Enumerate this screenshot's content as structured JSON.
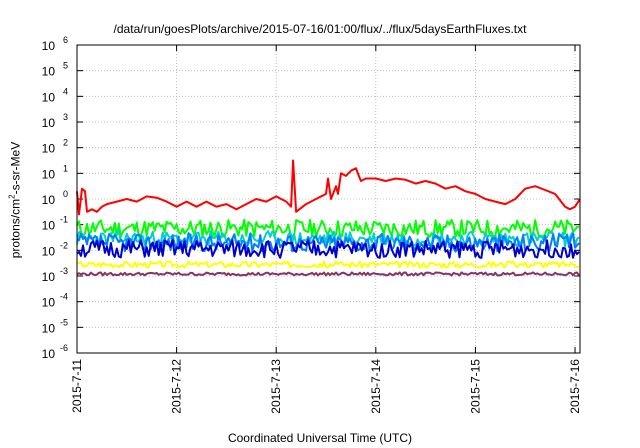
{
  "chart_data": {
    "type": "line",
    "title": "/data/run/goesPlots/archive/2015-07-16/01:00/flux/../flux/5daysEarthFluxes.txt",
    "xlabel": "Coordinated Universal Time (UTC)",
    "ylabel_parts": [
      "protons/cm",
      "2",
      "-s-sr-MeV"
    ],
    "yscale": "log",
    "ylim_exp": [
      -6,
      6
    ],
    "xlim_days": [
      0,
      5.05
    ],
    "x_ticks": [
      "2015-7-11",
      "2015-7-12",
      "2015-7-13",
      "2015-7-14",
      "2015-7-15",
      "2015-7-16"
    ],
    "y_tick_exponents": [
      -6,
      -5,
      -4,
      -3,
      -2,
      -1,
      0,
      1,
      2,
      3,
      4,
      5,
      6
    ],
    "grid": true,
    "series": [
      {
        "color": "#ff0000",
        "points": [
          [
            0,
            0.3
          ],
          [
            0.02,
            -0.6
          ],
          [
            0.05,
            0.4
          ],
          [
            0.08,
            0.3
          ],
          [
            0.1,
            -0.5
          ],
          [
            0.15,
            -0.4
          ],
          [
            0.2,
            -0.5
          ],
          [
            0.25,
            -0.3
          ],
          [
            0.3,
            -0.2
          ],
          [
            0.4,
            -0.1
          ],
          [
            0.5,
            0.0
          ],
          [
            0.6,
            -0.1
          ],
          [
            0.7,
            0.1
          ],
          [
            0.8,
            0.05
          ],
          [
            0.9,
            -0.1
          ],
          [
            1.0,
            -0.3
          ],
          [
            1.1,
            -0.1
          ],
          [
            1.2,
            -0.3
          ],
          [
            1.3,
            -0.1
          ],
          [
            1.4,
            -0.3
          ],
          [
            1.5,
            -0.2
          ],
          [
            1.6,
            -0.4
          ],
          [
            1.7,
            -0.2
          ],
          [
            1.8,
            0.0
          ],
          [
            1.9,
            -0.1
          ],
          [
            2.0,
            0.1
          ],
          [
            2.1,
            -0.1
          ],
          [
            2.15,
            -0.3
          ],
          [
            2.17,
            1.5
          ],
          [
            2.2,
            -0.5
          ],
          [
            2.3,
            -0.2
          ],
          [
            2.4,
            0.0
          ],
          [
            2.5,
            0.2
          ],
          [
            2.52,
            0.8
          ],
          [
            2.55,
            0.0
          ],
          [
            2.6,
            0.5
          ],
          [
            2.62,
            0.2
          ],
          [
            2.65,
            1.0
          ],
          [
            2.7,
            0.9
          ],
          [
            2.75,
            1.1
          ],
          [
            2.8,
            1.2
          ],
          [
            2.85,
            0.7
          ],
          [
            2.9,
            0.8
          ],
          [
            3.0,
            0.8
          ],
          [
            3.1,
            0.7
          ],
          [
            3.2,
            0.8
          ],
          [
            3.3,
            0.75
          ],
          [
            3.4,
            0.6
          ],
          [
            3.5,
            0.7
          ],
          [
            3.6,
            0.6
          ],
          [
            3.7,
            0.4
          ],
          [
            3.8,
            0.5
          ],
          [
            3.9,
            0.3
          ],
          [
            4.0,
            0.2
          ],
          [
            4.1,
            0.0
          ],
          [
            4.2,
            -0.1
          ],
          [
            4.3,
            -0.2
          ],
          [
            4.4,
            0.0
          ],
          [
            4.5,
            0.4
          ],
          [
            4.6,
            0.5
          ],
          [
            4.7,
            0.35
          ],
          [
            4.8,
            0.2
          ],
          [
            4.9,
            -0.3
          ],
          [
            4.95,
            -0.4
          ],
          [
            5.0,
            -0.3
          ],
          [
            5.05,
            0.0
          ]
        ]
      },
      {
        "color": "#00ff00",
        "base": -1.15,
        "amp": 0.35,
        "seed": 11
      },
      {
        "color": "#00cfcf",
        "base": -1.55,
        "amp": 0.3,
        "seed": 23
      },
      {
        "color": "#0080ff",
        "base": -1.7,
        "amp": 0.35,
        "seed": 37
      },
      {
        "color": "#0000cc",
        "base": -1.95,
        "amp": 0.35,
        "seed": 51
      },
      {
        "color": "#ffff00",
        "base": -2.55,
        "amp": 0.12,
        "seed": 67
      },
      {
        "color": "#883366",
        "base": -2.92,
        "amp": 0.06,
        "seed": 79
      }
    ]
  }
}
